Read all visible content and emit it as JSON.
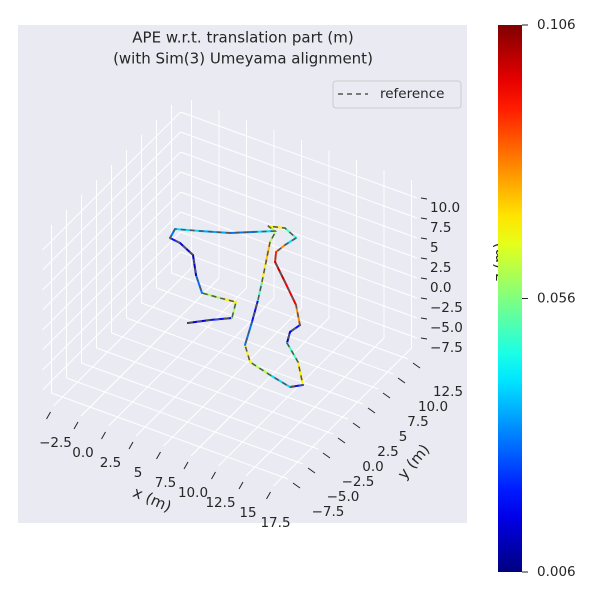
{
  "chart_data": {
    "type": "trajectory3d",
    "title": [
      "APE w.r.t. translation part (m)",
      "(with Sim(3) Umeyama alignment)"
    ],
    "xlabel": "x (m)",
    "ylabel": "y (m)",
    "zlabel": "z (m)",
    "xlim": [
      -3.5,
      18
    ],
    "ylim": [
      -9,
      14
    ],
    "zlim": [
      -9,
      12
    ],
    "xticks": [
      {
        "value": -2.5,
        "label": "−2.5"
      },
      {
        "value": 0,
        "label": "0.0"
      },
      2.5,
      5,
      7.5,
      {
        "value": 10,
        "label": "10.0"
      },
      12.5,
      15,
      17.5
    ],
    "yticks": [
      {
        "value": -7.5,
        "label": "−7.5"
      },
      {
        "value": -5,
        "label": "−5.0"
      },
      {
        "value": -2.5,
        "label": "−2.5"
      },
      {
        "value": 0,
        "label": "0.0"
      },
      2.5,
      5,
      7.5,
      {
        "value": 10,
        "label": "10.0"
      },
      12.5
    ],
    "zticks": [
      {
        "value": -7.5,
        "label": "−7.5"
      },
      {
        "value": -5,
        "label": "−5.0"
      },
      {
        "value": -2.5,
        "label": "−2.5"
      },
      {
        "value": 0,
        "label": "0.0"
      },
      2.5,
      5,
      7.5,
      {
        "value": 10,
        "label": "10.0"
      }
    ],
    "grid": true,
    "legend": "upper right",
    "series": [
      {
        "name": "reference",
        "color": "#555555",
        "style": "dashed",
        "x": [
          5.73,
          7.0,
          8.33,
          7.53,
          6.2,
          4.67,
          3.07,
          1.53,
          1.47,
          0.47,
          0.2,
          2.0,
          4.13,
          5.73,
          7.0,
          6.2,
          7.47,
          8.87,
          8.6,
          8.47,
          7.47,
          9.47,
          11.73,
          13.33,
          13.13,
          13.67,
          15.67,
          17.53,
          16.8,
          14.67,
          12.47,
          11.0,
          9.93,
          8.87,
          7.93,
          6.87,
          6.33,
          6.6
        ],
        "y": [
          -1.68,
          -0.33,
          0.89,
          3.02,
          2.8,
          2.61,
          4.54,
          6.86,
          4.81,
          4.98,
          6.3,
          7.17,
          8.26,
          9.5,
          10.5,
          10.8,
          11.3,
          10.6,
          9.23,
          7.98,
          9.65,
          7.64,
          5.33,
          3.05,
          1.76,
          0.28,
          -1.56,
          -4.15,
          -4.97,
          -4.39,
          -3.69,
          -1.83,
          1.29,
          4.24,
          6.62,
          9.24,
          10.9,
          11.2
        ],
        "z": [
          0,
          0,
          0,
          0,
          0,
          0,
          0,
          0,
          3,
          3,
          3,
          3,
          3,
          3,
          3,
          3,
          3,
          3,
          3,
          3,
          0,
          0,
          0,
          0,
          0,
          0,
          0,
          0,
          0,
          0,
          0,
          0,
          0,
          0,
          0,
          0,
          1,
          2
        ]
      }
    ],
    "error": [
      0.015,
      0.02,
      0.06,
      0.07,
      0.06,
      0.03,
      0.012,
      0.015,
      0.02,
      0.03,
      0.04,
      0.035,
      0.03,
      0.04,
      0.06,
      0.07,
      0.05,
      0.04,
      0.08,
      0.09,
      0.1,
      0.095,
      0.08,
      0.02,
      0.015,
      0.05,
      0.07,
      0.02,
      0.04,
      0.06,
      0.07,
      0.03,
      0.02,
      0.05,
      0.07,
      0.075,
      0.06,
      0.05
    ],
    "colormap": "jet",
    "clim": [
      0.006,
      0.106
    ],
    "cticks": [
      0.006,
      0.056,
      0.106
    ]
  }
}
